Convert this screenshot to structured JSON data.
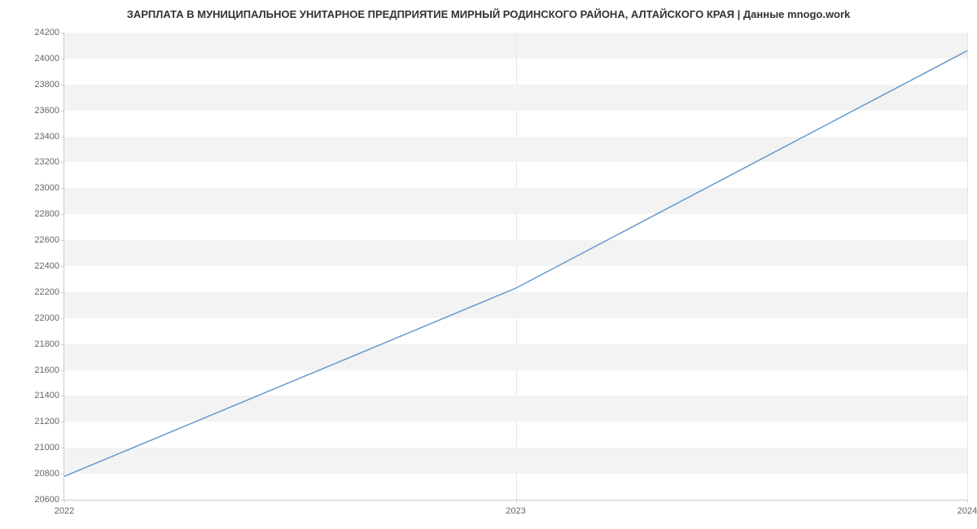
{
  "chart": {
    "type": "line",
    "title": "ЗАРПЛАТА В МУНИЦИПАЛЬНОЕ УНИТАРНОЕ ПРЕДПРИЯТИЕ МИРНЫЙ РОДИНСКОГО РАЙОНА, АЛТАЙСКОГО КРАЯ | Данные mnogo.work",
    "title_fontsize": 13,
    "title_color": "#333333",
    "background_color": "#ffffff",
    "plot_band_color": "#f3f3f3",
    "grid_color": "#e6e6e6",
    "axis_line_color": "#cccccc",
    "tick_label_color": "#666666",
    "tick_label_fontsize": 11,
    "y_axis": {
      "min": 20600,
      "max": 24200,
      "tick_step": 200,
      "ticks": [
        20600,
        20800,
        21000,
        21200,
        21400,
        21600,
        21800,
        22000,
        22200,
        22400,
        22600,
        22800,
        23000,
        23200,
        23400,
        23600,
        23800,
        24000,
        24200
      ]
    },
    "x_axis": {
      "min": 2022,
      "max": 2024,
      "ticks": [
        2022,
        2023,
        2024
      ]
    },
    "series": {
      "color": "#6699cc",
      "line_width": 1.5,
      "points": [
        {
          "x": 2022,
          "y": 20780
        },
        {
          "x": 2023,
          "y": 22230
        },
        {
          "x": 2024,
          "y": 24060
        }
      ]
    }
  }
}
